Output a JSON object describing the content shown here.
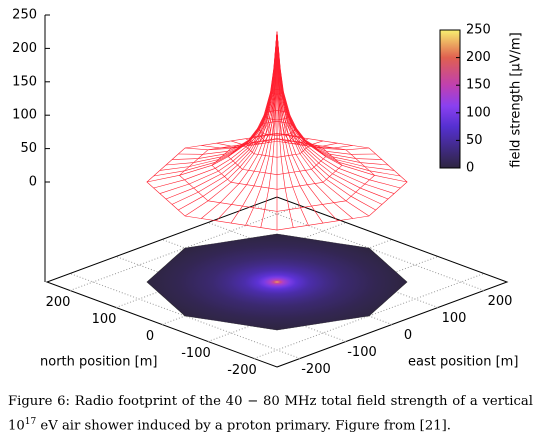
{
  "chart_data": {
    "type": "surface3d",
    "zticks": [
      0,
      50,
      100,
      150,
      200,
      250
    ],
    "zlim": [
      0,
      250
    ],
    "xlim": [
      -250,
      250
    ],
    "ylim": [
      -250,
      250
    ],
    "xticks": [
      -200,
      -100,
      0,
      100,
      200
    ],
    "yticks": [
      -200,
      -100,
      0,
      100,
      200
    ],
    "xlabel": "east position [m]",
    "ylabel": "north position [m]",
    "colorbar_label": "field strength [µV/m]",
    "colorbar_ticks": [
      0,
      50,
      100,
      150,
      200,
      250
    ],
    "x": [
      0,
      5,
      10,
      20,
      30,
      50,
      75,
      100,
      150,
      200
    ],
    "values": [
      225,
      170,
      135,
      100,
      80,
      55,
      38,
      25,
      10,
      0
    ],
    "color": "#ff2030"
  },
  "caption": {
    "line1": "Figure 6: Radio footprint of the 40 − 80 MHz total field strength of a vertical",
    "base": "10",
    "exponent": "17",
    "line2": " eV air shower induced by a proton primary. Figure from [21]."
  }
}
